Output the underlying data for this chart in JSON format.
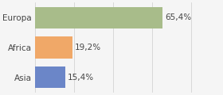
{
  "categories": [
    "Europa",
    "Africa",
    "Asia"
  ],
  "values": [
    65.4,
    19.2,
    15.4
  ],
  "bar_colors": [
    "#a8bc8a",
    "#f0a868",
    "#6b86c8"
  ],
  "labels": [
    "65,4%",
    "19,2%",
    "15,4%"
  ],
  "background_color": "#f5f5f5",
  "label_fontsize": 7.5,
  "tick_fontsize": 7.5,
  "xlim": [
    0,
    95
  ],
  "bar_height": 0.72
}
